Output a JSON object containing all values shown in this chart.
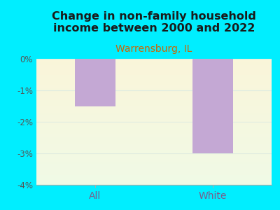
{
  "categories": [
    "All",
    "White"
  ],
  "values": [
    -1.5,
    -3.0
  ],
  "bar_color": "#c4a8d4",
  "title": "Change in non-family household\nincome between 2000 and 2022",
  "subtitle": "Warrensburg, IL",
  "title_fontsize": 11.5,
  "subtitle_fontsize": 10,
  "title_color": "#1a1a1a",
  "subtitle_color": "#cc6600",
  "xtick_color": "#7a5c8a",
  "background_color": "#00eeff",
  "plot_bg_top": "#f0f8e8",
  "plot_bg_bottom": "#d8f0d0",
  "ylim": [
    -4,
    0
  ],
  "yticks": [
    0,
    -1,
    -2,
    -3,
    -4
  ],
  "ytick_labels": [
    "0%",
    "-1%",
    "-2%",
    "-3%",
    "-4%"
  ],
  "bar_width": 0.35,
  "grid_color": "#e0ece0",
  "axis_color": "#aaaaaa",
  "ytick_color": "#555555"
}
